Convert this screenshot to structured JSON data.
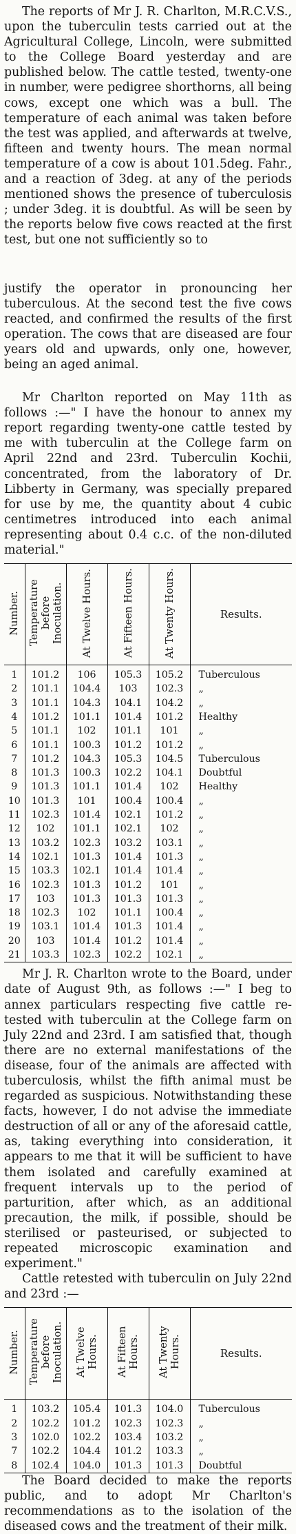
{
  "paragraphs": {
    "p1": "The reports of Mr J. R. Charlton, M.R.C.V.S., upon the tuberculin tests carried out at the Agricultural College, Lincoln, were submitted to the College Board yesterday and are published below. The cattle tested, twenty-one in number, were pedigree shorthorns, all being cows, except one which was a bull. The temperature of each animal was taken before the test was applied, and afterwards at twelve, fifteen and twenty hours. The mean normal temperature of a cow is about 101.5deg. Fahr., and a reaction of 3deg. at any of the periods mentioned shows the presence of tuberculosis ; under 3deg. it is doubtful. As will be seen by the reports below five cows reacted at the first test, but one not sufficiently so to",
    "p1_cont": "justify the operator in pronouncing her tuberculous. At the second test the five cows reacted, and confirmed the results of the first operation. The cows that are diseased are four years old and upwards, only one, however, being an aged animal.",
    "p2": "Mr Charlton reported on May 11th as follows :—\" I have the honour to annex my report regarding twenty-one cattle tested by me with tuberculin at the College farm on April 22nd and 23rd. Tuberculin Kochii, concentrated, from the laboratory of Dr. Libberty in Germany, was specially prepared for use by me, the quantity about 4 cubic centimetres introduced into each animal representing about 0.4 c.c. of the non-diluted material.\"",
    "p3": "Mr J. R. Charlton wrote to the Board, under date of August 9th, as follows :—\" I beg to annex particulars respecting five cattle re-tested with tuberculin at the College farm on July 22nd and 23rd. I am satisfied that, though there are no external manifestations of the disease, four of the animals are affected with tuberculosis, whilst the fifth animal must be regarded as suspicious. Notwithstanding these facts, however, I do not advise the immediate destruction of all or any of the aforesaid cattle, as, taking everything into consideration, it appears to me that it will be sufficient to have them isolated and carefully examined at frequent intervals up to the period of parturition, after which, as an additional precaution, the milk, if possible, should be sterilised or pasteurised, or subjected to repeated microscopic examination and experiment.\"",
    "p4": "Cattle retested with tuberculin on July 22nd and 23rd :—",
    "p5": "The Board decided to make the reports public, and to adopt Mr Charlton's recommendations as to the isolation of the diseased cows and the treatment of their milk."
  },
  "table_headers": {
    "number": "Number.",
    "temp_before": "Temperature before Inoculation.",
    "twelve": "At Twelve Hours.",
    "fifteen": "At Fifteen Hours.",
    "twenty": "At Twenty Hours.",
    "results": "Results."
  },
  "table1": [
    [
      "1",
      "101.2",
      "106",
      "105.3",
      "105.2",
      "Tuberculous"
    ],
    [
      "2",
      "101.1",
      "104.4",
      "103",
      "102.3",
      "„"
    ],
    [
      "3",
      "101.1",
      "104.3",
      "104.1",
      "104.2",
      "„"
    ],
    [
      "4",
      "101.2",
      "101.1",
      "101.4",
      "101.2",
      "Healthy"
    ],
    [
      "5",
      "101.1",
      "102",
      "101.1",
      "101",
      "„"
    ],
    [
      "6",
      "101.1",
      "100.3",
      "101.2",
      "101.2",
      "„"
    ],
    [
      "7",
      "101.2",
      "104.3",
      "105.3",
      "104.5",
      "Tuberculous"
    ],
    [
      "8",
      "101.3",
      "100.3",
      "102.2",
      "104.1",
      "Doubtful"
    ],
    [
      "9",
      "101.3",
      "101.1",
      "101.4",
      "102",
      "Healthy"
    ],
    [
      "10",
      "101.3",
      "101",
      "100.4",
      "100.4",
      "„"
    ],
    [
      "11",
      "102.3",
      "101.4",
      "102.1",
      "101.2",
      "„"
    ],
    [
      "12",
      "102",
      "101.1",
      "102.1",
      "102",
      "„"
    ],
    [
      "13",
      "103.2",
      "102.3",
      "103.2",
      "103.1",
      "„"
    ],
    [
      "14",
      "102.1",
      "101.3",
      "101.4",
      "101.3",
      "„"
    ],
    [
      "15",
      "103.3",
      "102.1",
      "101.4",
      "101.4",
      "„"
    ],
    [
      "16",
      "102.3",
      "101.3",
      "101.2",
      "101",
      "„"
    ],
    [
      "17",
      "103",
      "101.3",
      "101.3",
      "101.3",
      "„"
    ],
    [
      "18",
      "102.3",
      "102",
      "101.1",
      "100.4",
      "„"
    ],
    [
      "19",
      "103.1",
      "101.4",
      "101.3",
      "101.4",
      "„"
    ],
    [
      "20",
      "103",
      "101.4",
      "101.2",
      "101.4",
      "„"
    ],
    [
      "21",
      "103.3",
      "102.3",
      "102.2",
      "102.1",
      "„"
    ]
  ],
  "table2": [
    [
      "1",
      "103.2",
      "105.4",
      "101.3",
      "104.0",
      "Tuberculous"
    ],
    [
      "2",
      "102.2",
      "101.2",
      "102.3",
      "102.3",
      "„"
    ],
    [
      "3",
      "102.0",
      "102.2",
      "103.4",
      "103.2",
      "„"
    ],
    [
      "7",
      "102.2",
      "104.4",
      "101.2",
      "103.3",
      "„"
    ],
    [
      "8",
      "102.4",
      "104.0",
      "101.3",
      "101.3",
      "Doubtful"
    ]
  ]
}
